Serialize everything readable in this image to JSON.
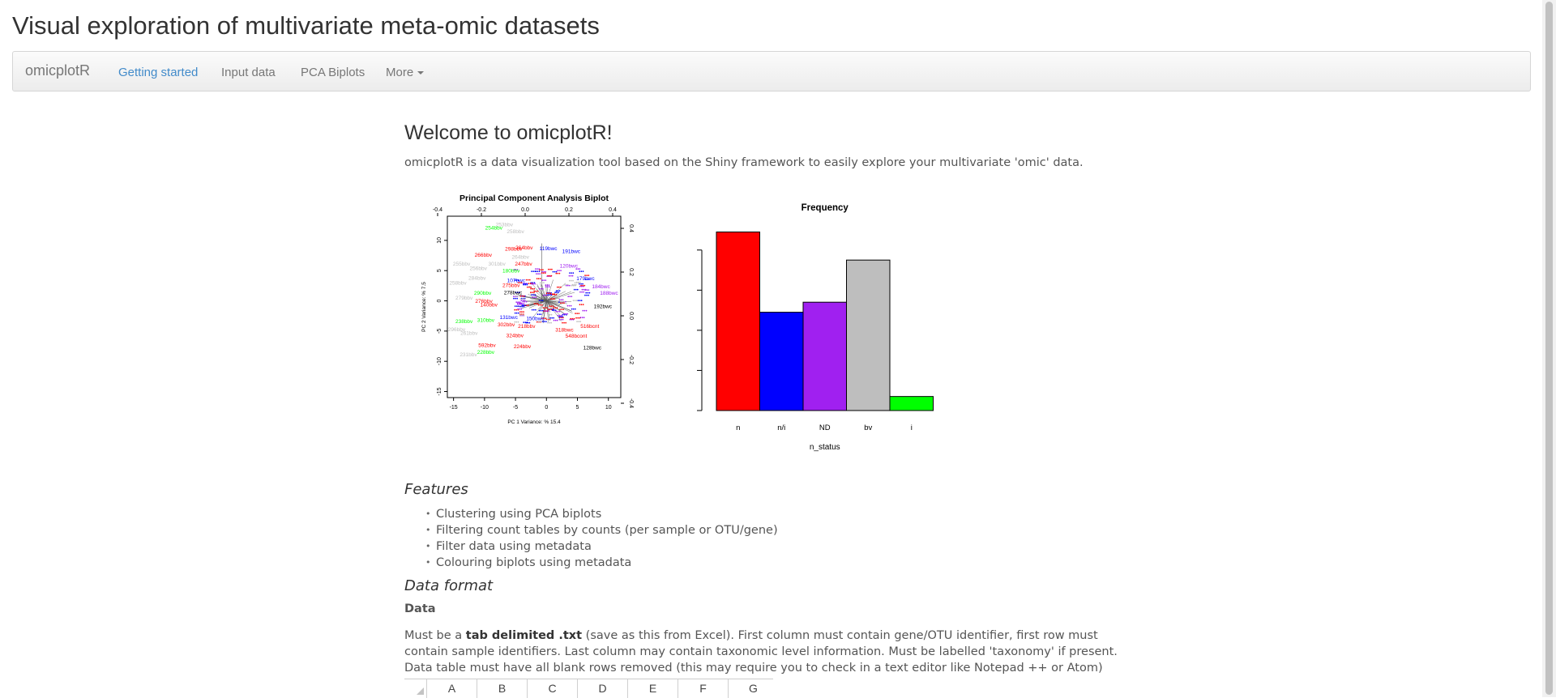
{
  "page": {
    "title": "Visual exploration of multivariate meta-omic datasets"
  },
  "navbar": {
    "brand": "omicplotR",
    "items": [
      {
        "label": "Getting started",
        "active": true
      },
      {
        "label": "Input data",
        "active": false
      },
      {
        "label": "PCA Biplots",
        "active": false
      },
      {
        "label": "More",
        "active": false,
        "dropdown": true
      }
    ]
  },
  "main": {
    "welcome_heading": "Welcome to omicplotR!",
    "intro": "omicplotR is a data visualization tool based on the Shiny framework to easily explore your multivariate 'omic' data.",
    "features_heading": "Features",
    "features": [
      "Clustering using PCA biplots",
      "Filtering count tables by counts (per sample or OTU/gene)",
      "Filter data using metadata",
      "Colouring biplots using metadata"
    ],
    "data_format_heading": "Data format",
    "data_subheading": "Data",
    "data_paragraph": {
      "prefix": "Must be a ",
      "bold": "tab delimited .txt",
      "suffix": " (save as this from Excel). First column must contain gene/OTU identifier, first row must contain sample identifiers. Last column may contain taxonomic level information. Must be labelled 'taxonomy' if present. Data table must have all blank rows removed (this may require you to check in a text editor like Notepad ++ or Atom)"
    },
    "spreadsheet_columns": [
      "A",
      "B",
      "C",
      "D",
      "E",
      "F",
      "G"
    ]
  },
  "chart_data": [
    {
      "type": "scatter",
      "title": "Principal Component Analysis Biplot",
      "xlabel": "PC 1 Variance: % 15.4",
      "ylabel": "PC 2 Variance: % 7.5",
      "xlim": [
        -16,
        12
      ],
      "ylim": [
        -16,
        14
      ],
      "xticks": [
        -15,
        -10,
        -5,
        0,
        5,
        10
      ],
      "yticks": [
        -15,
        -10,
        -5,
        0,
        5,
        10
      ],
      "top_ticks": [
        "-0.4",
        "-0.2",
        "0.0",
        "0.2",
        "0.4"
      ],
      "right_ticks": [
        "0.4",
        "0.2",
        "0.0",
        "-0.2",
        "-0.4"
      ],
      "colors": {
        "n": "#ff0000",
        "n/i": "#0000ff",
        "ND": "#a020f0",
        "bv": "#bebebe",
        "i": "#00ff00",
        "other": "#000000"
      },
      "labels": [
        {
          "text": "253bbv",
          "x": -6.8,
          "y": 12.3,
          "group": "bv"
        },
        {
          "text": "254bbv",
          "x": -8.5,
          "y": 11.8,
          "group": "i"
        },
        {
          "text": "258bbv",
          "x": -5.0,
          "y": 11.2,
          "group": "bv"
        },
        {
          "text": "298bbv",
          "x": -5.3,
          "y": 8.3,
          "group": "n"
        },
        {
          "text": "264bbv",
          "x": -3.6,
          "y": 8.5,
          "group": "n"
        },
        {
          "text": "119bwc",
          "x": 0.3,
          "y": 8.4,
          "group": "n/i"
        },
        {
          "text": "191bwc",
          "x": 4.0,
          "y": 7.9,
          "group": "n/i"
        },
        {
          "text": "266bbv",
          "x": -10.2,
          "y": 7.3,
          "group": "n"
        },
        {
          "text": "264bbv",
          "x": -4.2,
          "y": 7.0,
          "group": "bv"
        },
        {
          "text": "255bbv",
          "x": -13.7,
          "y": 5.8,
          "group": "bv"
        },
        {
          "text": "247bbv",
          "x": -3.7,
          "y": 5.8,
          "group": "n"
        },
        {
          "text": "120bwc",
          "x": 3.6,
          "y": 5.5,
          "group": "ND"
        },
        {
          "text": "180bbv",
          "x": -5.7,
          "y": 4.7,
          "group": "i"
        },
        {
          "text": "256bbv",
          "x": -11.0,
          "y": 5.1,
          "group": "bv"
        },
        {
          "text": "107bwc",
          "x": -4.9,
          "y": 3.1,
          "group": "n/i"
        },
        {
          "text": "179bwc",
          "x": 6.3,
          "y": 3.4,
          "group": "n/i"
        },
        {
          "text": "184bwc",
          "x": 8.8,
          "y": 2.1,
          "group": "ND"
        },
        {
          "text": "188bwc",
          "x": 10.1,
          "y": 1.0,
          "group": "ND"
        },
        {
          "text": "258bbv",
          "x": -14.3,
          "y": 2.7,
          "group": "bv"
        },
        {
          "text": "290bbv",
          "x": -10.3,
          "y": 1.0,
          "group": "i"
        },
        {
          "text": "279bbv",
          "x": -13.3,
          "y": 0.2,
          "group": "bv"
        },
        {
          "text": "276bbv",
          "x": -10.1,
          "y": -0.3,
          "group": "n"
        },
        {
          "text": "275bbv",
          "x": -5.7,
          "y": 2.3,
          "group": "n"
        },
        {
          "text": "278bwc",
          "x": -5.4,
          "y": 1.1,
          "group": "other"
        },
        {
          "text": "140bbv",
          "x": -9.3,
          "y": -0.9,
          "group": "n"
        },
        {
          "text": "192bwc",
          "x": 9.1,
          "y": -1.2,
          "group": "other"
        },
        {
          "text": "131bwc",
          "x": -6.1,
          "y": -3.0,
          "group": "n/i"
        },
        {
          "text": "310bbv",
          "x": -9.8,
          "y": -3.5,
          "group": "i"
        },
        {
          "text": "238bbv",
          "x": -13.3,
          "y": -3.7,
          "group": "i"
        },
        {
          "text": "302bbv",
          "x": -6.5,
          "y": -4.2,
          "group": "n"
        },
        {
          "text": "218bbv",
          "x": -3.2,
          "y": -4.5,
          "group": "n"
        },
        {
          "text": "150bwc",
          "x": -1.8,
          "y": -3.2,
          "group": "n/i"
        },
        {
          "text": "516bcnt",
          "x": 7.0,
          "y": -4.5,
          "group": "n"
        },
        {
          "text": "318bwc",
          "x": 2.9,
          "y": -5.1,
          "group": "n"
        },
        {
          "text": "324bbv",
          "x": -5.1,
          "y": -6.0,
          "group": "n"
        },
        {
          "text": "548bcont",
          "x": 4.8,
          "y": -6.1,
          "group": "n"
        },
        {
          "text": "592bbv",
          "x": -9.6,
          "y": -7.6,
          "group": "n"
        },
        {
          "text": "224bbv",
          "x": -3.9,
          "y": -7.8,
          "group": "n"
        },
        {
          "text": "128bwc",
          "x": 7.4,
          "y": -8.0,
          "group": "other"
        },
        {
          "text": "228bbv",
          "x": -9.8,
          "y": -8.8,
          "group": "i"
        },
        {
          "text": "231bbv",
          "x": -12.6,
          "y": -9.2,
          "group": "bv"
        },
        {
          "text": "296bbv",
          "x": -14.5,
          "y": -5.0,
          "group": "bv"
        },
        {
          "text": "261bbv",
          "x": -12.5,
          "y": -5.6,
          "group": "bv"
        },
        {
          "text": "284bbv",
          "x": -11.2,
          "y": 3.5,
          "group": "bv"
        },
        {
          "text": "301bbv",
          "x": -8.0,
          "y": 5.8,
          "group": "bv"
        }
      ]
    },
    {
      "type": "bar",
      "title": "Frequency",
      "xlabel": "n_status",
      "categories": [
        "n",
        "n/i",
        "ND",
        "bv",
        "i"
      ],
      "values": [
        89,
        49,
        54,
        75,
        7
      ],
      "colors": [
        "#ff0000",
        "#0000ff",
        "#a020f0",
        "#bebebe",
        "#00ff00"
      ],
      "ylim": [
        0,
        90
      ],
      "yticks": [
        0,
        20,
        40,
        60,
        80
      ]
    }
  ]
}
